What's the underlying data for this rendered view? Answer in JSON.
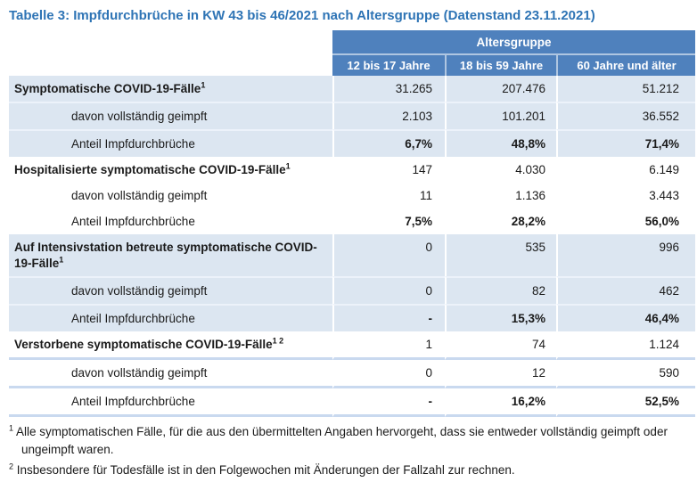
{
  "title": "Tabelle 3: Impfdurchbrüche in KW 43 bis 46/2021 nach Altersgruppe (Datenstand 23.11.2021)",
  "header": {
    "group_label": "Altersgruppe",
    "columns": [
      "12 bis 17 Jahre",
      "18 bis 59 Jahre",
      "60 Jahre und älter"
    ]
  },
  "rows": [
    {
      "label": "Symptomatische COVID-19-Fälle",
      "sup": "1",
      "values": [
        "31.265",
        "207.476",
        "51.212"
      ]
    },
    {
      "label": "davon vollständig geimpft",
      "values": [
        "2.103",
        "101.201",
        "36.552"
      ]
    },
    {
      "label": "Anteil Impfdurchbrüche",
      "values": [
        "6,7%",
        "48,8%",
        "71,4%"
      ]
    },
    {
      "label": "Hospitalisierte symptomatische COVID-19-Fälle",
      "sup": "1",
      "values": [
        "147",
        "4.030",
        "6.149"
      ]
    },
    {
      "label": "davon vollständig geimpft",
      "values": [
        "11",
        "1.136",
        "3.443"
      ]
    },
    {
      "label": "Anteil Impfdurchbrüche",
      "values": [
        "7,5%",
        "28,2%",
        "56,0%"
      ]
    },
    {
      "label": "Auf Intensivstation betreute symptomatische COVID-19-Fälle",
      "sup": "1",
      "values": [
        "0",
        "535",
        "996"
      ]
    },
    {
      "label": "davon vollständig geimpft",
      "values": [
        "0",
        "82",
        "462"
      ]
    },
    {
      "label": "Anteil Impfdurchbrüche",
      "values": [
        "-",
        "15,3%",
        "46,4%"
      ]
    },
    {
      "label": "Verstorbene symptomatische COVID-19-Fälle",
      "sup": "1 2",
      "values": [
        "1",
        "74",
        "1.124"
      ]
    },
    {
      "label": "davon vollständig geimpft",
      "values": [
        "0",
        "12",
        "590"
      ]
    },
    {
      "label": "Anteil Impfdurchbrüche",
      "values": [
        "-",
        "16,2%",
        "52,5%"
      ]
    }
  ],
  "footnotes": [
    {
      "marker": "1",
      "text": "Alle symptomatischen Fälle, für die aus den übermittelten Angaben hervorgeht, dass sie entweder vollständig geimpft oder ungeimpft waren."
    },
    {
      "marker": "2",
      "text": "Insbesondere für Todesfälle ist in den Folgewochen mit Änderungen der Fallzahl zur rechnen."
    }
  ],
  "colors": {
    "title_blue": "#2E74B5",
    "header_blue": "#4F81BD",
    "row_blue": "#DCE6F1"
  }
}
